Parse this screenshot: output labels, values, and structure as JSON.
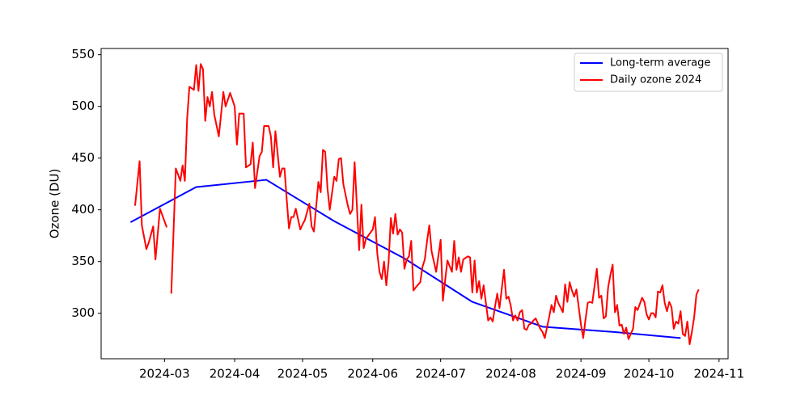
{
  "chart_data": {
    "type": "line",
    "ylabel": "Ozone (DU)",
    "ylim": [
      256,
      556
    ],
    "yticks": [
      300,
      350,
      400,
      450,
      500,
      550
    ],
    "xlim": [
      "2024-02-02",
      "2024-11-05"
    ],
    "xticks": [
      {
        "value": "2024-03-01",
        "label": "2024-03"
      },
      {
        "value": "2024-04-01",
        "label": "2024-04"
      },
      {
        "value": "2024-05-01",
        "label": "2024-05"
      },
      {
        "value": "2024-06-01",
        "label": "2024-06"
      },
      {
        "value": "2024-07-01",
        "label": "2024-07"
      },
      {
        "value": "2024-08-01",
        "label": "2024-08"
      },
      {
        "value": "2024-09-01",
        "label": "2024-09"
      },
      {
        "value": "2024-10-01",
        "label": "2024-10"
      },
      {
        "value": "2024-11-01",
        "label": "2024-11"
      }
    ],
    "legend": "upper right",
    "grid": false,
    "series": [
      {
        "name": "Long-term average",
        "color": "#0000ff",
        "x": [
          "2024-02-15",
          "2024-03-15",
          "2024-04-15",
          "2024-05-15",
          "2024-06-15",
          "2024-07-15",
          "2024-08-15",
          "2024-09-15",
          "2024-10-15"
        ],
        "values": [
          388,
          422,
          429,
          389,
          353,
          311,
          287,
          282,
          276
        ]
      },
      {
        "name": "Daily ozone 2024",
        "color": "#ff0000",
        "x": [
          "2024-02-17",
          "2024-02-19",
          "2024-02-20",
          "2024-02-22",
          "2024-02-23",
          "2024-02-25",
          "2024-02-26",
          "2024-02-28",
          "2024-03-02",
          "2024-03-03",
          "2024-03-04",
          "2024-03-06",
          "2024-03-08",
          "2024-03-09",
          "2024-03-10",
          "2024-03-11",
          "2024-03-12",
          "2024-03-14",
          "2024-03-15",
          "2024-03-16",
          "2024-03-17",
          "2024-03-18",
          "2024-03-19",
          "2024-03-20",
          "2024-03-21",
          "2024-03-22",
          "2024-03-23",
          "2024-03-25",
          "2024-03-27",
          "2024-03-28",
          "2024-03-30",
          "2024-04-01",
          "2024-04-02",
          "2024-04-03",
          "2024-04-05",
          "2024-04-06",
          "2024-04-08",
          "2024-04-09",
          "2024-04-10",
          "2024-04-12",
          "2024-04-13",
          "2024-04-14",
          "2024-04-16",
          "2024-04-17",
          "2024-04-18",
          "2024-04-19",
          "2024-04-21",
          "2024-04-22",
          "2024-04-23",
          "2024-04-24",
          "2024-04-25",
          "2024-04-26",
          "2024-04-27",
          "2024-04-28",
          "2024-04-30",
          "2024-05-01",
          "2024-05-02",
          "2024-05-04",
          "2024-05-05",
          "2024-05-06",
          "2024-05-08",
          "2024-05-09",
          "2024-05-10",
          "2024-05-11",
          "2024-05-12",
          "2024-05-13",
          "2024-05-15",
          "2024-05-16",
          "2024-05-17",
          "2024-05-18",
          "2024-05-19",
          "2024-05-21",
          "2024-05-22",
          "2024-05-23",
          "2024-05-24",
          "2024-05-26",
          "2024-05-27",
          "2024-05-28",
          "2024-05-29",
          "2024-06-01",
          "2024-06-02",
          "2024-06-03",
          "2024-06-04",
          "2024-06-05",
          "2024-06-06",
          "2024-06-07",
          "2024-06-08",
          "2024-06-09",
          "2024-06-10",
          "2024-06-11",
          "2024-06-12",
          "2024-06-13",
          "2024-06-14",
          "2024-06-15",
          "2024-06-16",
          "2024-06-17",
          "2024-06-18",
          "2024-06-19",
          "2024-06-20",
          "2024-06-22",
          "2024-06-23",
          "2024-06-24",
          "2024-06-25",
          "2024-06-26",
          "2024-06-27",
          "2024-06-29",
          "2024-07-01",
          "2024-07-02",
          "2024-07-03",
          "2024-07-04",
          "2024-07-06",
          "2024-07-07",
          "2024-07-08",
          "2024-07-09",
          "2024-07-10",
          "2024-07-11",
          "2024-07-13",
          "2024-07-14",
          "2024-07-15",
          "2024-07-16",
          "2024-07-17",
          "2024-07-18",
          "2024-07-19",
          "2024-07-20",
          "2024-07-22",
          "2024-07-23",
          "2024-07-24",
          "2024-07-25",
          "2024-07-26",
          "2024-07-27",
          "2024-07-29",
          "2024-07-30",
          "2024-07-31",
          "2024-08-01",
          "2024-08-02",
          "2024-08-03",
          "2024-08-04",
          "2024-08-05",
          "2024-08-06",
          "2024-08-07",
          "2024-08-08",
          "2024-08-09",
          "2024-08-10",
          "2024-08-11",
          "2024-08-12",
          "2024-08-14",
          "2024-08-15",
          "2024-08-16",
          "2024-08-18",
          "2024-08-19",
          "2024-08-20",
          "2024-08-21",
          "2024-08-22",
          "2024-08-24",
          "2024-08-25",
          "2024-08-26",
          "2024-08-27",
          "2024-08-28",
          "2024-08-29",
          "2024-08-30",
          "2024-09-01",
          "2024-09-02",
          "2024-09-03",
          "2024-09-04",
          "2024-09-05",
          "2024-09-06",
          "2024-09-08",
          "2024-09-09",
          "2024-09-10",
          "2024-09-11",
          "2024-09-12",
          "2024-09-13",
          "2024-09-14",
          "2024-09-15",
          "2024-09-16",
          "2024-09-17",
          "2024-09-18",
          "2024-09-19",
          "2024-09-20",
          "2024-09-21",
          "2024-09-22",
          "2024-09-24",
          "2024-09-25",
          "2024-09-26",
          "2024-09-27",
          "2024-09-28",
          "2024-09-29",
          "2024-09-30",
          "2024-10-01",
          "2024-10-02",
          "2024-10-03",
          "2024-10-04",
          "2024-10-05",
          "2024-10-06",
          "2024-10-07",
          "2024-10-08",
          "2024-10-09",
          "2024-10-10",
          "2024-10-11",
          "2024-10-12",
          "2024-10-13",
          "2024-10-14",
          "2024-10-15",
          "2024-10-16",
          "2024-10-17",
          "2024-10-18",
          "2024-10-19",
          "2024-10-20",
          "2024-10-21",
          "2024-10-22",
          "2024-10-23"
        ],
        "values": [
          404,
          447,
          385,
          362,
          368,
          384,
          352,
          401,
          383,
          null,
          319,
          440,
          428,
          443,
          428,
          488,
          519,
          516,
          540,
          515,
          541,
          536,
          486,
          509,
          500,
          514,
          492,
          471,
          514,
          500,
          513,
          500,
          463,
          493,
          493,
          441,
          444,
          465,
          421,
          452,
          456,
          481,
          481,
          471,
          441,
          476,
          432,
          440,
          440,
          410,
          382,
          393,
          393,
          401,
          381,
          386,
          390,
          406,
          384,
          379,
          427,
          417,
          458,
          456,
          421,
          400,
          432,
          428,
          449,
          450,
          425,
          404,
          396,
          400,
          446,
          361,
          405,
          363,
          372,
          381,
          393,
          358,
          340,
          333,
          350,
          327,
          349,
          392,
          377,
          396,
          376,
          381,
          378,
          343,
          352,
          355,
          370,
          322,
          325,
          330,
          345,
          352,
          370,
          385,
          360,
          340,
          371,
          312,
          332,
          351,
          340,
          370,
          342,
          354,
          340,
          352,
          355,
          354,
          320,
          351,
          320,
          331,
          314,
          327,
          293,
          296,
          292,
          306,
          319,
          305,
          342,
          314,
          316,
          307,
          293,
          298,
          293,
          301,
          303,
          285,
          284,
          289,
          290,
          293,
          295,
          285,
          282,
          276,
          297,
          308,
          301,
          317,
          310,
          301,
          328,
          311,
          330,
          322,
          316,
          323,
          289,
          276,
          294,
          310,
          311,
          310,
          343,
          315,
          317,
          295,
          297,
          325,
          337,
          347,
          301,
          308,
          288,
          289,
          280,
          286,
          275,
          285,
          306,
          303,
          309,
          315,
          311,
          299,
          294,
          300,
          300,
          296,
          321,
          320,
          327,
          310,
          302,
          311,
          306,
          285,
          292,
          290,
          302,
          280,
          278,
          292,
          270,
          282,
          296,
          318,
          323
        ]
      }
    ]
  }
}
